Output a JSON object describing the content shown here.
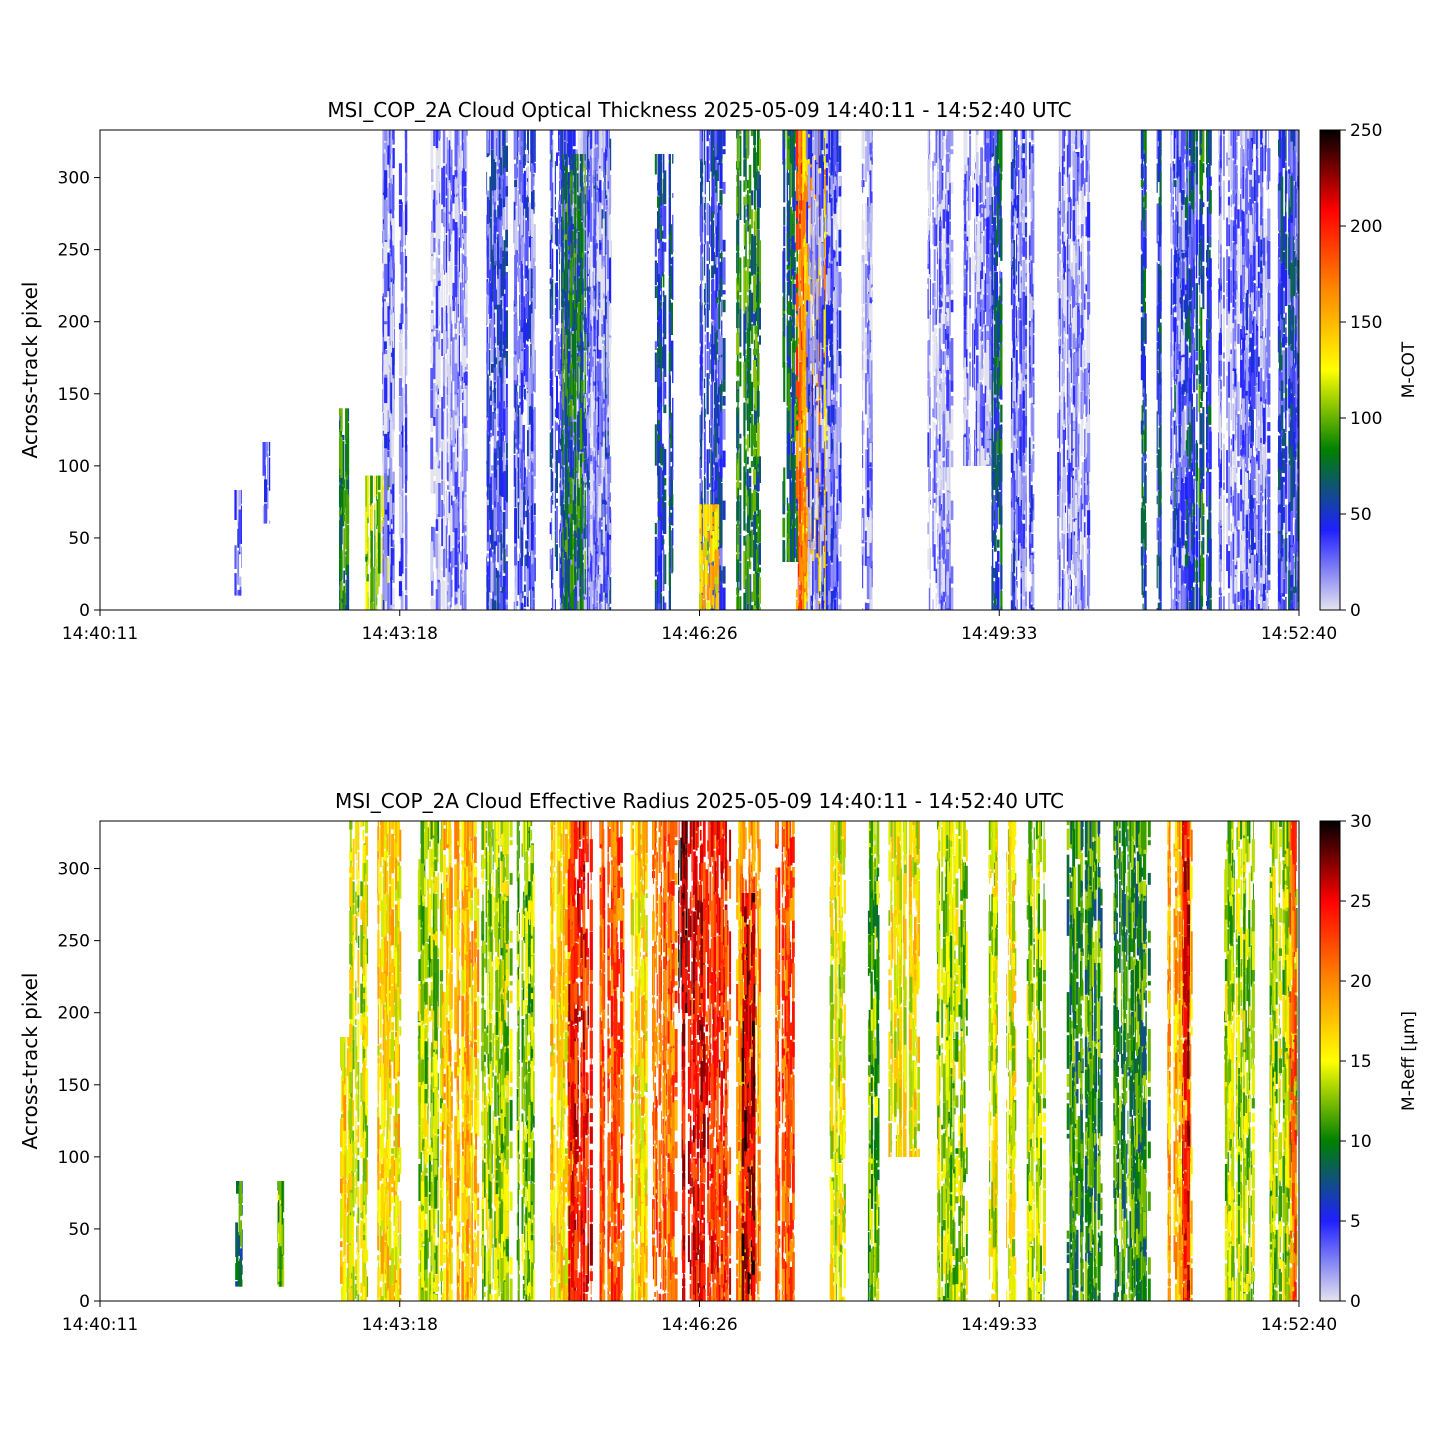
{
  "chart_data": [
    {
      "type": "heatmap",
      "title": "MSI_COP_2A Cloud Optical Thickness    2025-05-09    14:40:11 - 14:52:40 UTC",
      "ylabel": "Across-track pixel",
      "xlabel": "",
      "x_ticks": [
        "14:40:11",
        "14:43:18",
        "14:46:26",
        "14:49:33",
        "14:52:40"
      ],
      "y_ticks": [
        0,
        50,
        100,
        150,
        200,
        250,
        300
      ],
      "ylim": [
        0,
        333
      ],
      "colorbar": {
        "label": "M-COT",
        "range": [
          0,
          250
        ],
        "ticks": [
          0,
          50,
          100,
          150,
          200,
          250
        ],
        "colors": [
          "#e4e4ee",
          "#2020ff",
          "#008000",
          "#ffff00",
          "#ff8800",
          "#ff0000",
          "#000000"
        ]
      },
      "cloud_bands": [
        {
          "x": 0.115,
          "width": 0.006,
          "level": 0.1,
          "y0": 0.03,
          "y1": 0.25
        },
        {
          "x": 0.138,
          "width": 0.006,
          "level": 0.1,
          "y0": 0.18,
          "y1": 0.35
        },
        {
          "x": 0.203,
          "width": 0.008,
          "level": 0.3,
          "y0": 0.0,
          "y1": 0.42
        },
        {
          "x": 0.23,
          "width": 0.02,
          "level": 0.45,
          "y0": 0.0,
          "y1": 0.28
        },
        {
          "x": 0.245,
          "width": 0.02,
          "level": 0.08,
          "y0": 0.0,
          "y1": 1.0
        },
        {
          "x": 0.29,
          "width": 0.03,
          "level": 0.05,
          "y0": 0.0,
          "y1": 1.0
        },
        {
          "x": 0.33,
          "width": 0.02,
          "level": 0.14,
          "y0": 0.0,
          "y1": 1.0
        },
        {
          "x": 0.355,
          "width": 0.02,
          "level": 0.12,
          "y0": 0.0,
          "y1": 1.0
        },
        {
          "x": 0.385,
          "width": 0.02,
          "level": 0.16,
          "y0": 0.0,
          "y1": 1.0
        },
        {
          "x": 0.415,
          "width": 0.02,
          "level": 0.14,
          "y0": 0.0,
          "y1": 1.0
        },
        {
          "x": 0.41,
          "width": 0.03,
          "level": 0.06,
          "y0": 0.0,
          "y1": 1.0
        },
        {
          "x": 0.395,
          "width": 0.02,
          "level": 0.3,
          "y0": 0.0,
          "y1": 0.95
        },
        {
          "x": 0.47,
          "width": 0.015,
          "level": 0.22,
          "y0": 0.0,
          "y1": 0.95
        },
        {
          "x": 0.51,
          "width": 0.02,
          "level": 0.18,
          "y0": 0.0,
          "y1": 1.0
        },
        {
          "x": 0.507,
          "width": 0.015,
          "level": 0.55,
          "y0": 0.0,
          "y1": 0.22
        },
        {
          "x": 0.54,
          "width": 0.02,
          "level": 0.32,
          "y0": 0.0,
          "y1": 1.0
        },
        {
          "x": 0.575,
          "width": 0.012,
          "level": 0.28,
          "y0": 0.1,
          "y1": 1.0
        },
        {
          "x": 0.585,
          "width": 0.01,
          "level": 0.7,
          "y0": 0.0,
          "y1": 1.0
        },
        {
          "x": 0.595,
          "width": 0.02,
          "level": 0.6,
          "y0": 0.0,
          "y1": 1.0
        },
        {
          "x": 0.604,
          "width": 0.03,
          "level": 0.1,
          "y0": 0.0,
          "y1": 1.0
        },
        {
          "x": 0.64,
          "width": 0.01,
          "level": 0.05,
          "y0": 0.0,
          "y1": 1.0
        },
        {
          "x": 0.7,
          "width": 0.02,
          "level": 0.05,
          "y0": 0.0,
          "y1": 1.0
        },
        {
          "x": 0.735,
          "width": 0.03,
          "level": 0.06,
          "y0": 0.3,
          "y1": 1.0
        },
        {
          "x": 0.77,
          "width": 0.015,
          "level": 0.1,
          "y0": 0.0,
          "y1": 1.0
        },
        {
          "x": 0.81,
          "width": 0.03,
          "level": 0.06,
          "y0": 0.0,
          "y1": 1.0
        },
        {
          "x": 0.905,
          "width": 0.02,
          "level": 0.2,
          "y0": 0.0,
          "y1": 1.0
        },
        {
          "x": 0.898,
          "width": 0.012,
          "level": 0.1,
          "y0": 0.0,
          "y1": 1.0
        },
        {
          "x": 0.945,
          "width": 0.025,
          "level": 0.06,
          "y0": 0.0,
          "y1": 1.0
        },
        {
          "x": 0.965,
          "width": 0.02,
          "level": 0.1,
          "y0": 0.0,
          "y1": 1.0
        },
        {
          "x": 0.998,
          "width": 0.004,
          "level": 0.12,
          "y0": 0.0,
          "y1": 1.0
        },
        {
          "x": 0.99,
          "width": 0.02,
          "level": 0.18,
          "y0": 0.0,
          "y1": 1.0
        },
        {
          "x": 0.745,
          "width": 0.004,
          "level": 0.2,
          "y0": 0.0,
          "y1": 1.0
        },
        {
          "x": 0.76,
          "width": 0.004,
          "level": 0.12,
          "y0": 0.0,
          "y1": 1.0
        },
        {
          "x": 0.75,
          "width": 0.004,
          "level": 0.25,
          "y0": 0.0,
          "y1": 1.0
        },
        {
          "x": 0.918,
          "width": 0.004,
          "level": 0.28,
          "y0": 0.0,
          "y1": 1.0
        },
        {
          "x": 0.924,
          "width": 0.004,
          "level": 0.22,
          "y0": 0.0,
          "y1": 1.0
        },
        {
          "x": 0.87,
          "width": 0.004,
          "level": 0.24,
          "y0": 0.0,
          "y1": 1.0
        },
        {
          "x": 0.883,
          "width": 0.004,
          "level": 0.2,
          "y0": 0.0,
          "y1": 1.0
        }
      ]
    },
    {
      "type": "heatmap",
      "title": "MSI_COP_2A Cloud Effective Radius    2025-05-09    14:40:11 - 14:52:40 UTC",
      "ylabel": "Across-track pixel",
      "xlabel": "",
      "x_ticks": [
        "14:40:11",
        "14:43:18",
        "14:46:26",
        "14:49:33",
        "14:52:40"
      ],
      "y_ticks": [
        0,
        50,
        100,
        150,
        200,
        250,
        300
      ],
      "ylim": [
        0,
        333
      ],
      "colorbar": {
        "label": "M-Reff [μm]",
        "range": [
          0,
          30
        ],
        "ticks": [
          0,
          5,
          10,
          15,
          20,
          25,
          30
        ],
        "colors": [
          "#e4e4ee",
          "#2020ff",
          "#008000",
          "#ffff00",
          "#ff8800",
          "#ff0000",
          "#000000"
        ]
      },
      "cloud_bands": [
        {
          "x": 0.115,
          "width": 0.006,
          "level": 0.3,
          "y0": 0.03,
          "y1": 0.25
        },
        {
          "x": 0.15,
          "width": 0.006,
          "level": 0.4,
          "y0": 0.03,
          "y1": 0.25
        },
        {
          "x": 0.205,
          "width": 0.01,
          "level": 0.55,
          "y0": 0.0,
          "y1": 0.55
        },
        {
          "x": 0.215,
          "width": 0.015,
          "level": 0.48,
          "y0": 0.0,
          "y1": 1.0
        },
        {
          "x": 0.24,
          "width": 0.02,
          "level": 0.55,
          "y0": 0.0,
          "y1": 1.0
        },
        {
          "x": 0.275,
          "width": 0.02,
          "level": 0.45,
          "y0": 0.0,
          "y1": 1.0
        },
        {
          "x": 0.3,
          "width": 0.03,
          "level": 0.58,
          "y0": 0.0,
          "y1": 1.0
        },
        {
          "x": 0.33,
          "width": 0.025,
          "level": 0.45,
          "y0": 0.0,
          "y1": 1.0
        },
        {
          "x": 0.355,
          "width": 0.015,
          "level": 0.42,
          "y0": 0.0,
          "y1": 1.0
        },
        {
          "x": 0.385,
          "width": 0.02,
          "level": 0.55,
          "y0": 0.0,
          "y1": 1.0
        },
        {
          "x": 0.4,
          "width": 0.02,
          "level": 0.8,
          "y0": 0.0,
          "y1": 1.0
        },
        {
          "x": 0.425,
          "width": 0.022,
          "level": 0.72,
          "y0": 0.0,
          "y1": 1.0
        },
        {
          "x": 0.45,
          "width": 0.015,
          "level": 0.55,
          "y0": 0.0,
          "y1": 1.0
        },
        {
          "x": 0.47,
          "width": 0.02,
          "level": 0.7,
          "y0": 0.0,
          "y1": 1.0
        },
        {
          "x": 0.495,
          "width": 0.02,
          "level": 0.82,
          "y0": 0.0,
          "y1": 1.0
        },
        {
          "x": 0.515,
          "width": 0.02,
          "level": 0.78,
          "y0": 0.0,
          "y1": 1.0
        },
        {
          "x": 0.54,
          "width": 0.02,
          "level": 0.65,
          "y0": 0.0,
          "y1": 1.0
        },
        {
          "x": 0.57,
          "width": 0.018,
          "level": 0.72,
          "y0": 0.0,
          "y1": 1.0
        },
        {
          "x": 0.485,
          "width": 0.01,
          "level": 0.9,
          "y0": 0.6,
          "y1": 1.0
        },
        {
          "x": 0.54,
          "width": 0.01,
          "level": 0.88,
          "y0": 0.0,
          "y1": 0.85
        },
        {
          "x": 0.615,
          "width": 0.015,
          "level": 0.5,
          "y0": 0.0,
          "y1": 1.0
        },
        {
          "x": 0.67,
          "width": 0.025,
          "level": 0.52,
          "y0": 0.3,
          "y1": 1.0
        },
        {
          "x": 0.71,
          "width": 0.025,
          "level": 0.45,
          "y0": 0.0,
          "y1": 1.0
        },
        {
          "x": 0.78,
          "width": 0.015,
          "level": 0.45,
          "y0": 0.0,
          "y1": 1.0
        },
        {
          "x": 0.82,
          "width": 0.03,
          "level": 0.35,
          "y0": 0.0,
          "y1": 1.0
        },
        {
          "x": 0.86,
          "width": 0.03,
          "level": 0.35,
          "y0": 0.0,
          "y1": 1.0
        },
        {
          "x": 0.9,
          "width": 0.02,
          "level": 0.6,
          "y0": 0.0,
          "y1": 1.0
        },
        {
          "x": 0.905,
          "width": 0.006,
          "level": 0.82,
          "y0": 0.0,
          "y1": 1.0
        },
        {
          "x": 0.95,
          "width": 0.025,
          "level": 0.45,
          "y0": 0.0,
          "y1": 1.0
        },
        {
          "x": 0.985,
          "width": 0.025,
          "level": 0.45,
          "y0": 0.0,
          "y1": 1.0
        },
        {
          "x": 0.995,
          "width": 0.006,
          "level": 0.7,
          "y0": 0.0,
          "y1": 1.0
        },
        {
          "x": 0.645,
          "width": 0.01,
          "level": 0.4,
          "y0": 0.0,
          "y1": 1.0
        },
        {
          "x": 0.745,
          "width": 0.008,
          "level": 0.48,
          "y0": 0.0,
          "y1": 1.0
        },
        {
          "x": 0.758,
          "width": 0.008,
          "level": 0.5,
          "y0": 0.0,
          "y1": 1.0
        }
      ]
    }
  ]
}
